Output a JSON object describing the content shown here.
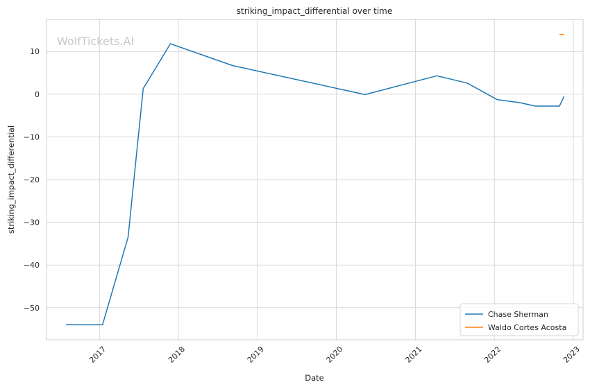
{
  "chart_data": {
    "type": "line",
    "title": "striking_impact_differential over time",
    "xlabel": "Date",
    "ylabel": "striking_impact_differential",
    "watermark": "WolfTickets.AI",
    "xlim": [
      "2016-05-01",
      "2023-02-15"
    ],
    "ylim": [
      -57.5,
      17.5
    ],
    "x_ticks": [
      "2017",
      "2018",
      "2019",
      "2020",
      "2021",
      "2022",
      "2023"
    ],
    "y_ticks": [
      10,
      0,
      -10,
      -20,
      -30,
      -40,
      -50
    ],
    "y_tick_labels": [
      "10",
      "0",
      "−10",
      "−20",
      "−30",
      "−40",
      "−50"
    ],
    "grid": true,
    "legend_position": "lower-right",
    "series": [
      {
        "name": "Chase Sherman",
        "color": "#1f77b4",
        "points": [
          [
            "2016-07-30",
            -54.0
          ],
          [
            "2017-01-15",
            -54.0
          ],
          [
            "2017-05-13",
            -33.5
          ],
          [
            "2017-07-22",
            1.3
          ],
          [
            "2017-11-25",
            11.8
          ],
          [
            "2018-09-08",
            6.7
          ],
          [
            "2020-05-13",
            -0.1
          ],
          [
            "2021-04-10",
            4.3
          ],
          [
            "2021-08-28",
            2.6
          ],
          [
            "2022-01-15",
            -1.3
          ],
          [
            "2022-04-30",
            -2.0
          ],
          [
            "2022-07-09",
            -2.8
          ],
          [
            "2022-10-29",
            -2.8
          ],
          [
            "2022-11-19",
            -0.5
          ]
        ]
      },
      {
        "name": "Waldo Cortes Acosta",
        "color": "#ff7f0e",
        "points": [
          [
            "2022-10-29",
            14.0
          ],
          [
            "2022-11-19",
            14.0
          ]
        ]
      }
    ]
  }
}
